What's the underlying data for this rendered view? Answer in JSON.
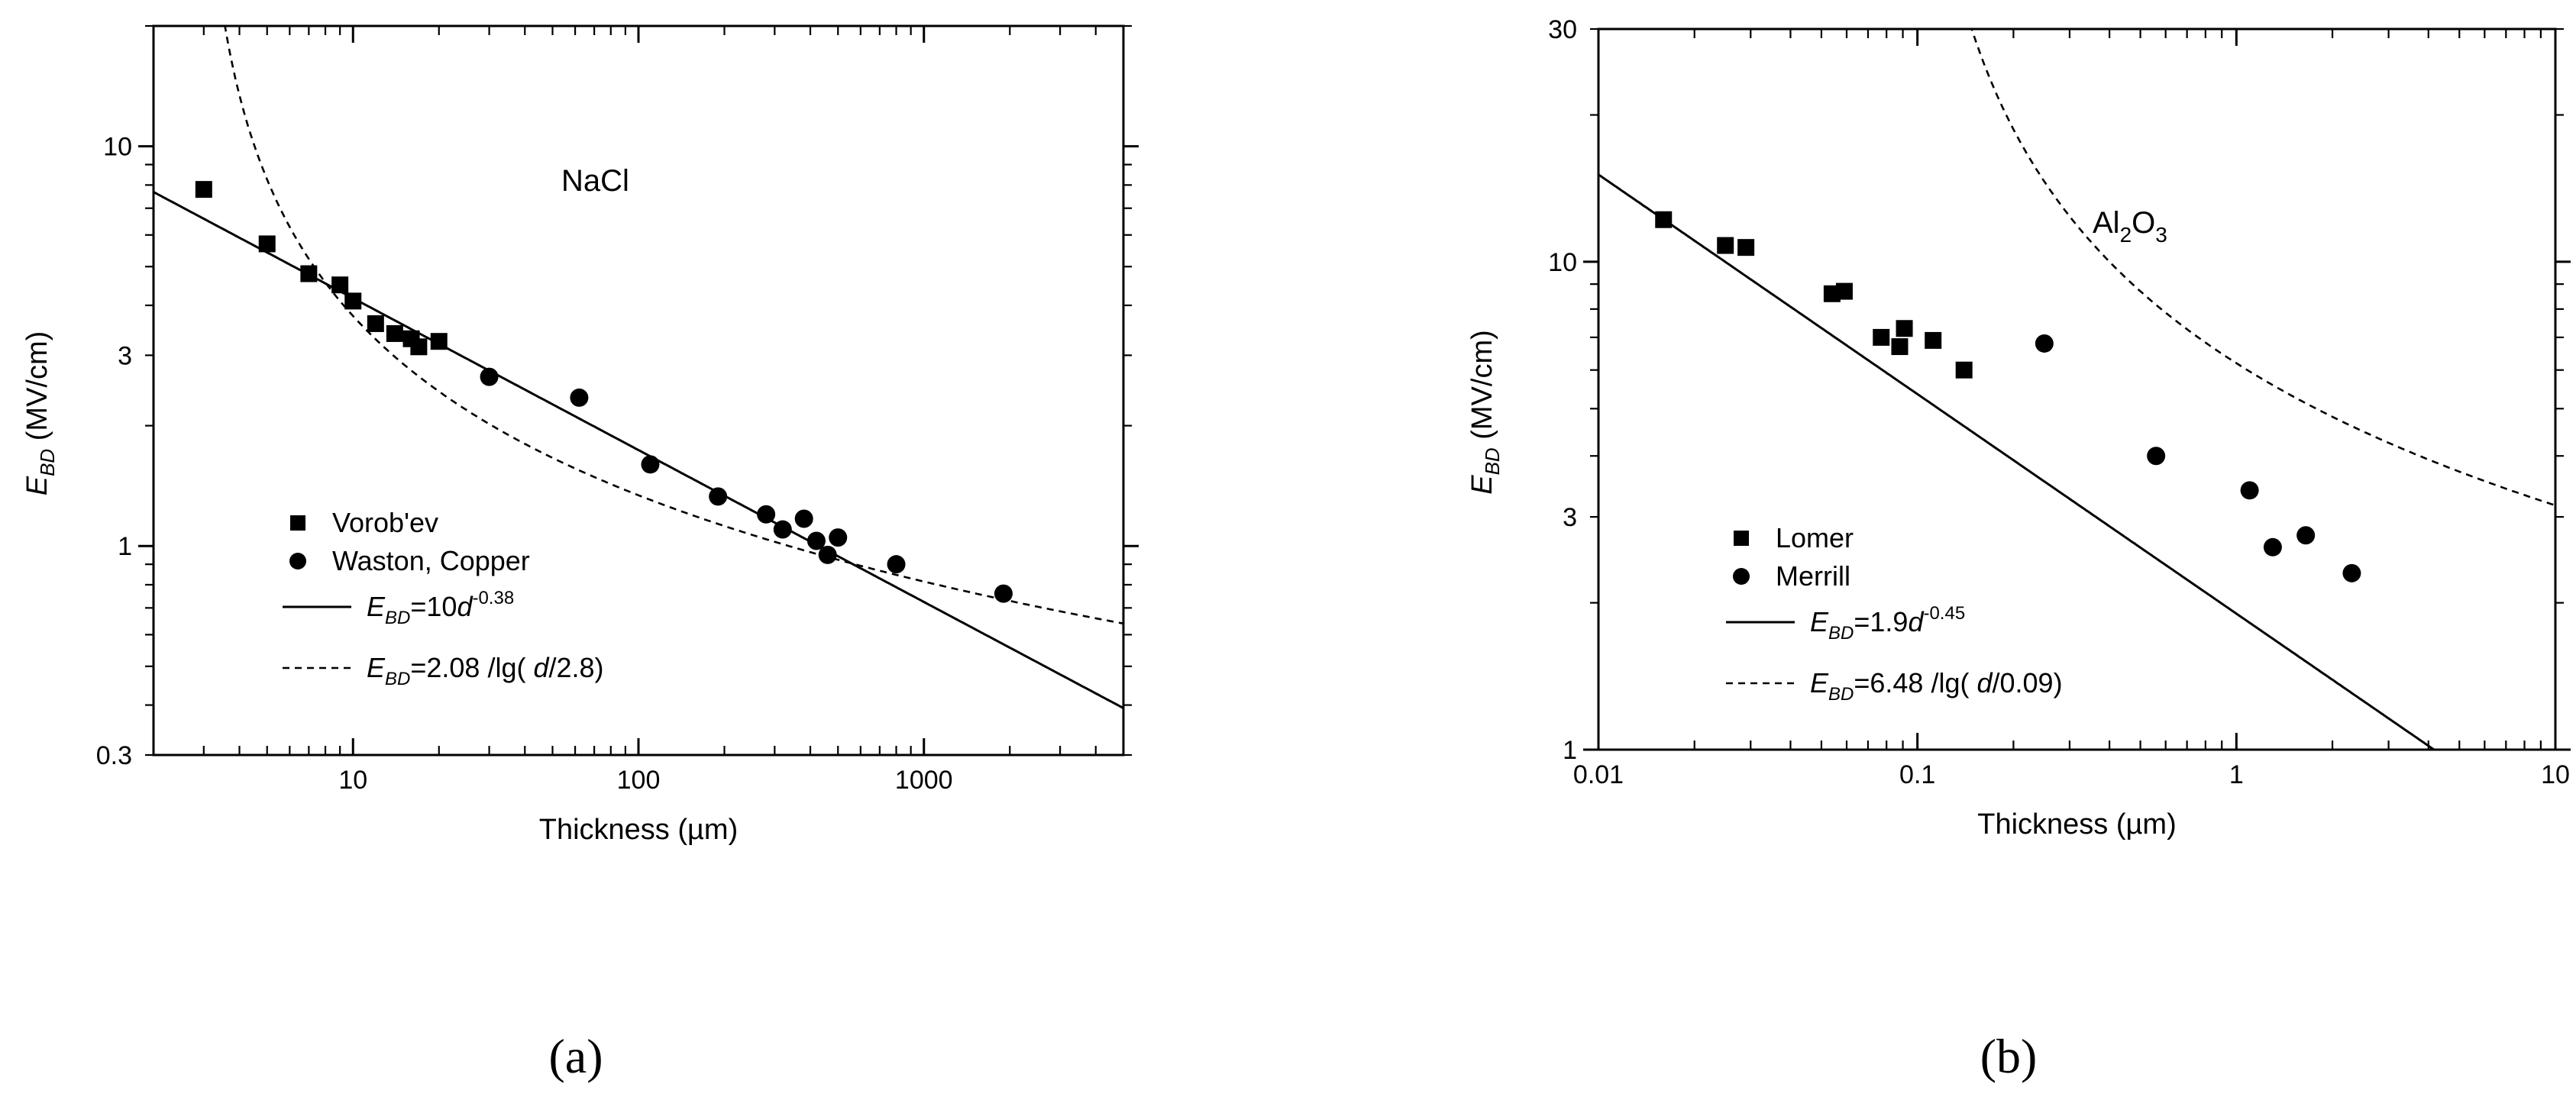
{
  "chart_data": [
    {
      "type": "scatter",
      "panel_label": "(a)",
      "annotation": "NaCl",
      "xlabel": "Thickness (µm)",
      "ylabel": {
        "main": "E",
        "sub": "BD",
        "units": " (MV/cm)"
      },
      "x_scale": "log",
      "y_scale": "log",
      "xlim": [
        2,
        5000
      ],
      "ylim": [
        0.3,
        20
      ],
      "x_ticks": [
        10,
        100,
        1000
      ],
      "x_tick_labels": [
        "10",
        "100",
        "1000"
      ],
      "y_ticks": [
        0.3,
        1,
        3,
        10
      ],
      "y_tick_labels": [
        "0.3",
        "1",
        "3",
        "10"
      ],
      "legend_position": "center-left",
      "series": [
        {
          "name": "Vorob'ev",
          "marker": "square",
          "points": [
            [
              3,
              7.8
            ],
            [
              5,
              5.7
            ],
            [
              7,
              4.8
            ],
            [
              9,
              4.5
            ],
            [
              10,
              4.1
            ],
            [
              12,
              3.6
            ],
            [
              14,
              3.4
            ],
            [
              16,
              3.3
            ],
            [
              17,
              3.15
            ],
            [
              20,
              3.25
            ]
          ]
        },
        {
          "name": "Waston, Copper",
          "marker": "circle",
          "points": [
            [
              30,
              2.65
            ],
            [
              62,
              2.35
            ],
            [
              110,
              1.6
            ],
            [
              190,
              1.33
            ],
            [
              280,
              1.2
            ],
            [
              320,
              1.1
            ],
            [
              380,
              1.17
            ],
            [
              420,
              1.03
            ],
            [
              460,
              0.95
            ],
            [
              500,
              1.05
            ],
            [
              800,
              0.9
            ],
            [
              1900,
              0.76
            ]
          ]
        }
      ],
      "fits": [
        {
          "style": "solid",
          "label": {
            "main": "E",
            "sub": "BD",
            "rest": "=10",
            "var": "d",
            "sup": "-0.38"
          },
          "model": "power",
          "a": 10,
          "b": -0.38
        },
        {
          "style": "dashed",
          "label": {
            "main": "E",
            "sub": "BD",
            "rest": "=2.08 /lg( ",
            "var": "d",
            "tail": "/2.8)"
          },
          "model": "invlog",
          "a": 2.08,
          "d0": 2.8
        }
      ]
    },
    {
      "type": "scatter",
      "panel_label": "(b)",
      "annotation": {
        "main": "Al",
        "sub1": "2",
        "mid": "O",
        "sub2": "3"
      },
      "xlabel": "Thickness (µm)",
      "ylabel": {
        "main": "E",
        "sub": "BD",
        "units": " (MV/cm)"
      },
      "x_scale": "log",
      "y_scale": "log",
      "xlim": [
        0.01,
        10
      ],
      "ylim": [
        1,
        30
      ],
      "x_ticks": [
        0.01,
        0.1,
        1,
        10
      ],
      "x_tick_labels": [
        "0.01",
        "0.1",
        "1",
        "10"
      ],
      "y_ticks": [
        1,
        3,
        10,
        30
      ],
      "y_tick_labels": [
        "1",
        "3",
        "10",
        "30"
      ],
      "legend_position": "lower-left",
      "series": [
        {
          "name": "Lomer",
          "marker": "square",
          "points": [
            [
              0.016,
              12.2
            ],
            [
              0.025,
              10.8
            ],
            [
              0.029,
              10.7
            ],
            [
              0.054,
              8.6
            ],
            [
              0.059,
              8.7
            ],
            [
              0.077,
              7.0
            ],
            [
              0.088,
              6.7
            ],
            [
              0.091,
              7.3
            ],
            [
              0.112,
              6.9
            ],
            [
              0.14,
              6.0
            ]
          ]
        },
        {
          "name": "Merrill",
          "marker": "circle",
          "points": [
            [
              0.25,
              6.8
            ],
            [
              0.56,
              4.0
            ],
            [
              1.1,
              3.4
            ],
            [
              1.3,
              2.6
            ],
            [
              1.65,
              2.75
            ],
            [
              2.3,
              2.3
            ]
          ]
        }
      ],
      "fits": [
        {
          "style": "solid",
          "label": {
            "main": "E",
            "sub": "BD",
            "rest": "=1.9",
            "var": "d",
            "sup": "-0.45"
          },
          "model": "power",
          "a": 1.9,
          "b": -0.45
        },
        {
          "style": "dashed",
          "label": {
            "main": "E",
            "sub": "BD",
            "rest": "=6.48 /lg( ",
            "var": "d",
            "tail": "/0.09)"
          },
          "model": "invlog",
          "a": 6.48,
          "d0": 0.09
        }
      ]
    }
  ]
}
